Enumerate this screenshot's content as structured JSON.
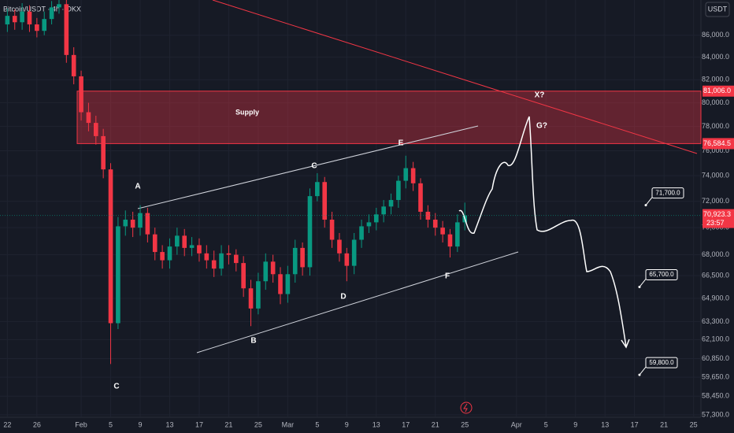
{
  "chart_data": {
    "type": "candlestick",
    "title": "Bitcoin/USDT · 4h · OKX",
    "currency": "USDT",
    "log_scale": true,
    "up_color": "#089981",
    "down_color": "#f23645",
    "x": [
      22,
      23,
      24,
      25,
      26,
      27,
      28,
      29,
      30,
      31,
      32,
      33,
      34,
      35,
      36,
      37,
      38,
      39,
      40,
      41,
      42,
      43,
      44,
      45,
      46,
      47,
      48,
      49,
      50,
      51,
      52,
      53,
      54,
      55,
      56,
      57,
      58,
      59,
      60,
      61,
      62,
      63,
      64,
      65,
      66,
      67,
      68,
      69,
      70,
      71,
      72,
      73,
      74,
      75,
      76,
      77,
      78,
      79,
      80,
      81,
      82,
      83,
      84
    ],
    "open": [
      87000,
      87800,
      87200,
      88200,
      87000,
      86400,
      87500,
      88600,
      88900,
      84200,
      82300,
      79200,
      78300,
      77200,
      74500,
      63200,
      70100,
      70600,
      70000,
      71100,
      69500,
      68200,
      67600,
      68600,
      69400,
      68500,
      68700,
      68100,
      67600,
      67000,
      68100,
      68000,
      67400,
      65600,
      64200,
      66100,
      67500,
      66600,
      65200,
      66600,
      68500,
      67100,
      72400,
      73500,
      70600,
      69100,
      68100,
      67200,
      69100,
      70100,
      70400,
      71000,
      71600,
      72100,
      73600,
      74600,
      73400,
      71200,
      70600,
      70000,
      69500,
      68600,
      70400
    ],
    "high": [
      88500,
      88400,
      89000,
      88800,
      87600,
      88200,
      89200,
      89500,
      89300,
      84900,
      82800,
      80000,
      78900,
      77800,
      75000,
      70800,
      71300,
      71200,
      71700,
      71500,
      70000,
      68700,
      69200,
      70000,
      69900,
      69300,
      69200,
      68700,
      68300,
      68700,
      68700,
      68400,
      67900,
      66200,
      66700,
      68100,
      68000,
      67100,
      67200,
      69100,
      68900,
      73000,
      74200,
      73900,
      71200,
      69600,
      68500,
      69600,
      70600,
      71000,
      71500,
      72100,
      72600,
      74000,
      75600,
      75100,
      73800,
      71700,
      71100,
      70500,
      69900,
      71000,
      71900
    ],
    "low": [
      86300,
      86500,
      86500,
      86300,
      85800,
      86000,
      87000,
      88000,
      83500,
      81600,
      78500,
      77600,
      76500,
      73800,
      60500,
      62800,
      69400,
      69300,
      69400,
      68900,
      67600,
      67000,
      67000,
      68000,
      67900,
      67900,
      67500,
      67000,
      66400,
      66500,
      67300,
      66800,
      65000,
      63000,
      63800,
      65500,
      66000,
      64500,
      64600,
      66000,
      66500,
      66500,
      72000,
      70000,
      68500,
      67500,
      66100,
      66600,
      68500,
      69600,
      69800,
      70400,
      71000,
      71500,
      73000,
      72800,
      70600,
      70000,
      69400,
      68900,
      67800,
      68200,
      69800
    ],
    "close": [
      87800,
      87200,
      88200,
      87000,
      86400,
      87500,
      88600,
      88900,
      84200,
      82300,
      79200,
      78300,
      77200,
      74500,
      63200,
      70100,
      70600,
      70000,
      71100,
      69500,
      68200,
      67600,
      68600,
      69400,
      68500,
      68700,
      68100,
      67600,
      67000,
      68100,
      68000,
      67400,
      65600,
      64200,
      66100,
      67500,
      66600,
      65200,
      66600,
      68500,
      67100,
      72400,
      73500,
      70600,
      69100,
      68100,
      67200,
      69100,
      70100,
      70400,
      71000,
      71600,
      72100,
      73600,
      74600,
      73400,
      71200,
      70600,
      70000,
      69500,
      68600,
      70400,
      70923.3
    ],
    "xlim": [
      21,
      116
    ],
    "xticks": [
      22,
      26,
      {
        "value": 32,
        "label": "Feb"
      },
      {
        "value": 36,
        "label": "5"
      },
      {
        "value": 40,
        "label": "9"
      },
      {
        "value": 44,
        "label": "13"
      },
      {
        "value": 48,
        "label": "17"
      },
      {
        "value": 52,
        "label": "21"
      },
      {
        "value": 56,
        "label": "25"
      },
      {
        "value": 60,
        "label": "Mar"
      },
      {
        "value": 64,
        "label": "5"
      },
      {
        "value": 68,
        "label": "9"
      },
      {
        "value": 72,
        "label": "13"
      },
      {
        "value": 76,
        "label": "17"
      },
      {
        "value": 80,
        "label": "21"
      },
      {
        "value": 84,
        "label": "25"
      },
      {
        "value": 91,
        "label": "Apr"
      },
      {
        "value": 95,
        "label": "5"
      },
      {
        "value": 99,
        "label": "9"
      },
      {
        "value": 103,
        "label": "13"
      },
      {
        "value": 107,
        "label": "17"
      },
      {
        "value": 111,
        "label": "21"
      },
      {
        "value": 115,
        "label": "25"
      }
    ],
    "ylim": [
      57150,
      89300
    ],
    "yticks": [
      {
        "value": 86000,
        "label": "86,000.0"
      },
      {
        "value": 84000,
        "label": "84,000.0"
      },
      {
        "value": 82000,
        "label": "82,000.0"
      },
      {
        "value": 80000,
        "label": "80,000.0"
      },
      {
        "value": 78000,
        "label": "78,000.0"
      },
      {
        "value": 76000,
        "label": "76,000.0"
      },
      {
        "value": 74000,
        "label": "74,000.0"
      },
      {
        "value": 72000,
        "label": "72,000.0"
      },
      {
        "value": 70000,
        "label": "70,000.0"
      },
      {
        "value": 68000,
        "label": "68,000.0"
      },
      {
        "value": 66500,
        "label": "66,500.0"
      },
      {
        "value": 64900,
        "label": "64,900.0"
      },
      {
        "value": 63300,
        "label": "63,300.0"
      },
      {
        "value": 62100,
        "label": "62,100.0"
      },
      {
        "value": 60850,
        "label": "60,850.0"
      },
      {
        "value": 59650,
        "label": "59,650.0"
      },
      {
        "value": 58450,
        "label": "58,450.0"
      },
      {
        "value": 57300,
        "label": "57,300.0"
      }
    ],
    "supply_zone": {
      "name": "Supply",
      "top": {
        "value": 81006.0,
        "label": "81,006.0"
      },
      "bottom": {
        "value": 76584.5,
        "label": "76,584.5"
      }
    },
    "last_price": {
      "value": 70923.3,
      "label": "70,923.3"
    },
    "countdown": "23:57",
    "targets": [
      {
        "value": 71700,
        "label": "71,700.0"
      },
      {
        "value": 65700,
        "label": "65,700.0"
      },
      {
        "value": 59800,
        "label": "59,800.0"
      }
    ],
    "wave_labels": [
      "A",
      "B",
      "C",
      "C",
      "D",
      "E",
      "F",
      "X?",
      "G?"
    ]
  }
}
